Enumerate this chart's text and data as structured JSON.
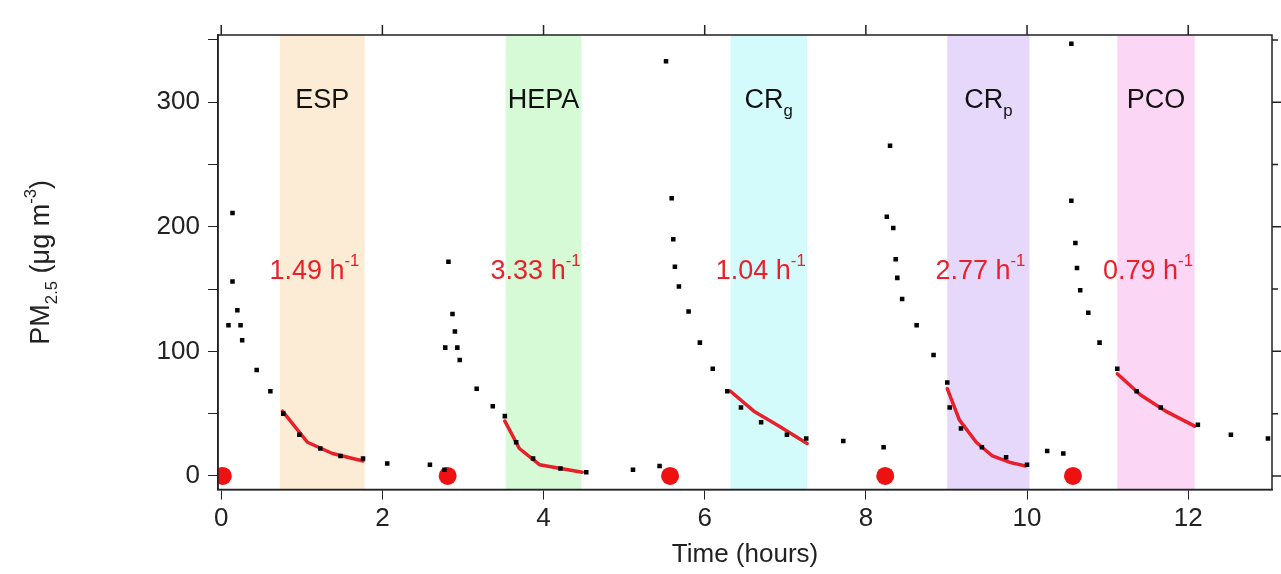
{
  "chart_data": {
    "type": "scatter",
    "xlabel": "Time (hours)",
    "ylabel": "PM$_{2.5}$ (μg m$^{-3}$)",
    "xlim": [
      -0.04,
      13.04
    ],
    "xticks": [
      0,
      2,
      4,
      6,
      8,
      10,
      12
    ],
    "ylim": [
      -11,
      354
    ],
    "yticks": [
      0,
      {
        "value": 50,
        "label": null
      },
      100,
      {
        "value": 150,
        "label": null
      },
      200,
      {
        "value": 250,
        "label": null
      },
      300,
      {
        "value": 350,
        "label": null
      }
    ],
    "grid": false,
    "legend": false,
    "series": [
      {
        "type": "scatter",
        "marker": "square",
        "color": "#000000",
        "x": [
          0.09,
          0.14,
          0.14,
          0.2,
          0.24,
          0.26,
          0.44,
          0.61,
          0.77,
          0.97,
          1.23,
          1.48,
          1.76,
          2.06,
          2.59,
          2.77,
          2.78,
          2.82,
          2.87,
          2.9,
          2.93,
          2.96,
          3.17,
          3.37,
          3.52,
          3.66,
          3.87,
          4.21,
          4.53,
          5.11,
          5.44,
          5.52,
          5.59,
          5.61,
          5.63,
          5.68,
          5.8,
          5.94,
          6.1,
          6.28,
          6.45,
          6.7,
          7.02,
          7.26,
          7.72,
          8.22,
          8.3,
          8.26,
          8.34,
          8.37,
          8.39,
          8.45,
          8.63,
          8.84,
          9.01,
          9.04,
          9.18,
          9.44,
          9.74,
          10.0,
          10.25,
          10.45,
          10.55,
          10.55,
          10.6,
          10.62,
          10.66,
          10.76,
          10.9,
          11.12,
          11.36,
          11.66,
          12.12,
          12.53,
          12.99
        ],
        "values": [
          121,
          211,
          156,
          133,
          121,
          109,
          85,
          68,
          50,
          33,
          22,
          16,
          14,
          10,
          9,
          5,
          103,
          172,
          130,
          116,
          103,
          93,
          70,
          56,
          48,
          27,
          14,
          6,
          3,
          5,
          8,
          333,
          223,
          190,
          168,
          152,
          132,
          107,
          86,
          68,
          55,
          43,
          33,
          30,
          28,
          23,
          265,
          208,
          199,
          174,
          159,
          142,
          121,
          97,
          75,
          55,
          38,
          23,
          15,
          9,
          20,
          18,
          347,
          221,
          187,
          167,
          149,
          131,
          107,
          86,
          68,
          55,
          41,
          33,
          30
        ]
      },
      {
        "type": "line",
        "marker": "none",
        "color": "#e8202a",
        "x": [
          0.76,
          1.07,
          1.38,
          1.76
        ],
        "values": [
          52,
          27,
          18,
          12
        ]
      },
      {
        "type": "line",
        "marker": "none",
        "color": "#e8202a",
        "x": [
          3.52,
          3.7,
          3.95,
          4.48
        ],
        "values": [
          44,
          22,
          9,
          3
        ]
      },
      {
        "type": "line",
        "marker": "none",
        "color": "#e8202a",
        "x": [
          6.32,
          6.61,
          6.92,
          7.27
        ],
        "values": [
          68,
          52,
          40,
          26
        ]
      },
      {
        "type": "line",
        "marker": "none",
        "color": "#e8202a",
        "x": [
          9.01,
          9.16,
          9.37,
          9.57,
          9.78,
          9.98
        ],
        "values": [
          70,
          45,
          27,
          16,
          11,
          8
        ]
      },
      {
        "type": "line",
        "marker": "none",
        "color": "#e8202a",
        "x": [
          11.12,
          11.41,
          11.72,
          12.08
        ],
        "values": [
          82,
          65,
          52,
          40
        ]
      },
      {
        "type": "scatter",
        "marker": "circle",
        "color": "#ee1111",
        "x": [
          0.02,
          2.81,
          5.57,
          8.24,
          10.57
        ],
        "values": [
          0,
          0,
          0,
          0,
          0
        ]
      }
    ],
    "bands": [
      {
        "axis": "x",
        "from": 0.73,
        "to": 1.78,
        "label": "ESP",
        "color": "#fcebd5"
      },
      {
        "axis": "x",
        "from": 3.53,
        "to": 4.47,
        "label": "HEPA",
        "color": "#d6f9d6"
      },
      {
        "axis": "x",
        "from": 6.32,
        "to": 7.27,
        "label": "CR$_{g}$",
        "color": "#d3fbfb"
      },
      {
        "axis": "x",
        "from": 9.01,
        "to": 10.03,
        "label": "CR$_{p}$",
        "color": "#e6d8fa"
      },
      {
        "axis": "x",
        "from": 11.12,
        "to": 12.08,
        "label": "PCO",
        "color": "#fbd6f5"
      }
    ],
    "annotations": [
      "1.49 h$^{-1}$",
      "3.33 h$^{-1}$",
      "1.04 h$^{-1}$",
      "2.77 h$^{-1}$",
      "0.79 h$^{-1}$"
    ]
  }
}
